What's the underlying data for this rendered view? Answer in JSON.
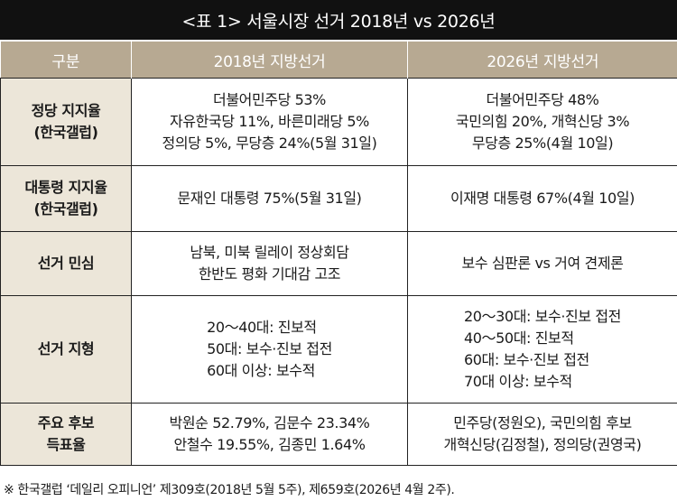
{
  "title": "<표 1> 서울시장 선거 2018년 vs 2026년",
  "header": {
    "col0": "구분",
    "col1": "2018년 지방선거",
    "col2": "2026년 지방선거"
  },
  "rows": [
    {
      "label": [
        "정당 지지율",
        "(한국갤럽)"
      ],
      "y2018": [
        "더불어민주당 53%",
        "자유한국당 11%, 바른미래당 5%",
        "정의당 5%, 무당층 24%(5월 31일)"
      ],
      "y2026": [
        "더불어민주당 48%",
        "국민의힘 20%, 개혁신당 3%",
        "무당층 25%(4월 10일)"
      ]
    },
    {
      "label": [
        "대통령 지지율",
        "(한국갤럽)"
      ],
      "y2018": [
        "문재인 대통령 75%(5월 31일)"
      ],
      "y2026": [
        "이재명 대통령 67%(4월 10일)"
      ]
    },
    {
      "label": [
        "선거 민심"
      ],
      "y2018": [
        "남북, 미북 릴레이 정상회담",
        "한반도 평화 기대감 고조"
      ],
      "y2026": [
        "보수 심판론 vs 거여 견제론"
      ]
    },
    {
      "label": [
        "선거 지형"
      ],
      "y2018": [
        "20～40대: 진보적",
        "50대: 보수·진보 접전",
        "60대 이상: 보수적"
      ],
      "y2026": [
        "20～30대: 보수·진보 접전",
        "40～50대: 진보적",
        "60대: 보수·진보 접전",
        "70대 이상: 보수적"
      ]
    },
    {
      "label": [
        "주요 후보",
        "득표율"
      ],
      "y2018": [
        "박원순 52.79%, 김문수 23.34%",
        "안철수 19.55%, 김종민 1.64%"
      ],
      "y2026": [
        "민주당(정원오), 국민의힘 후보",
        "개혁신당(김정철), 정의당(권영국)"
      ]
    }
  ],
  "footnote": "※ 한국갤럽 ‘데일리 오피니언’ 제309호(2018년 5월 5주), 제659호(2026년 4월 2주).",
  "colors": {
    "title_bg": "#111111",
    "header_bg": "#b7a992",
    "label_bg": "#ece6d9",
    "border": "#222222"
  }
}
